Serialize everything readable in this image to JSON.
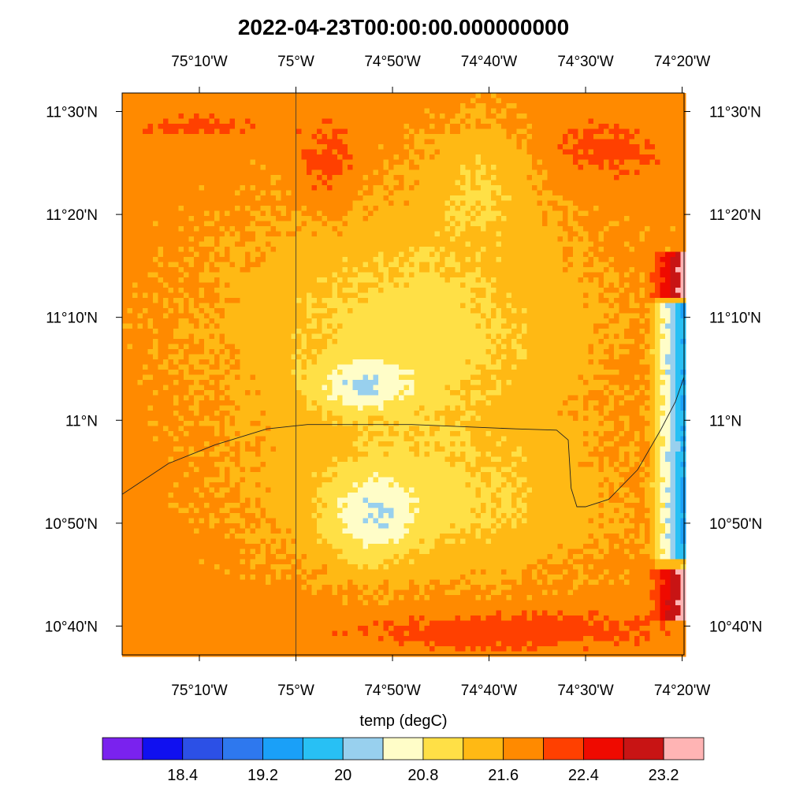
{
  "title": "2022-04-23T00:00:00.000000000",
  "variable_label": "temp (degC)",
  "chart_data": {
    "type": "heatmap",
    "title": "2022-04-23T00:00:00.000000000",
    "colorbar_label": "temp (degC)",
    "lon_range": [
      -75.3,
      -74.33
    ],
    "lat_range": [
      10.62,
      11.53
    ],
    "x_ticks": [
      {
        "value": -75.1667,
        "label": "75°10'W"
      },
      {
        "value": -75.0,
        "label": "75°W"
      },
      {
        "value": -74.8333,
        "label": "74°50'W"
      },
      {
        "value": -74.6667,
        "label": "74°40'W"
      },
      {
        "value": -74.5,
        "label": "74°30'W"
      },
      {
        "value": -74.3333,
        "label": "74°20'W"
      }
    ],
    "y_ticks": [
      {
        "value": 11.5,
        "label": "11°30'N"
      },
      {
        "value": 11.3333,
        "label": "11°20'N"
      },
      {
        "value": 11.1667,
        "label": "11°10'N"
      },
      {
        "value": 11.0,
        "label": "11°N"
      },
      {
        "value": 10.8333,
        "label": "10°50'N"
      },
      {
        "value": 10.6667,
        "label": "10°40'N"
      }
    ],
    "colorbar": {
      "colors": [
        "#7a22ee",
        "#1010f0",
        "#2c50e6",
        "#2e78ee",
        "#1aa0f8",
        "#28c0f4",
        "#98d0ee",
        "#fffdc8",
        "#ffe046",
        "#ffb914",
        "#ff8a00",
        "#ff4000",
        "#ef0a00",
        "#c81414",
        "#ffb4b4"
      ],
      "tick_values": [
        "18.4",
        "19.2",
        "20",
        "20.8",
        "21.6",
        "22.4",
        "23.2"
      ]
    },
    "field_regions": [
      {
        "class": "mostly 21.2-21.6",
        "description": "background"
      },
      {
        "class": "20.8-21.2",
        "lon": [
          -74.9,
          -74.55
        ],
        "lat": [
          10.75,
          11.28
        ]
      },
      {
        "class": "20.4-20.8",
        "lon": [
          -74.84,
          -74.76
        ],
        "lat": [
          11.03,
          11.08
        ]
      },
      {
        "class": "20.4-20.8",
        "lon": [
          -74.86,
          -74.74
        ],
        "lat": [
          10.78,
          10.93
        ]
      },
      {
        "class": "21.6-22.0",
        "lon": [
          -74.9,
          -74.8
        ],
        "lat": [
          11.33,
          11.46
        ]
      },
      {
        "class": "21.6-22.0",
        "lon": [
          -74.85,
          -74.4
        ],
        "lat": [
          10.63,
          10.68
        ]
      },
      {
        "class": "19.2-20.0",
        "lon": [
          -74.35,
          -74.33
        ],
        "lat": [
          10.84,
          11.2
        ]
      },
      {
        "class": "22.4-22.8",
        "lon": [
          -74.35,
          -74.33
        ],
        "lat": [
          11.18,
          11.23
        ]
      },
      {
        "class": "22.4-22.8",
        "lon": [
          -74.35,
          -74.33
        ],
        "lat": [
          10.68,
          10.76
        ]
      }
    ]
  }
}
